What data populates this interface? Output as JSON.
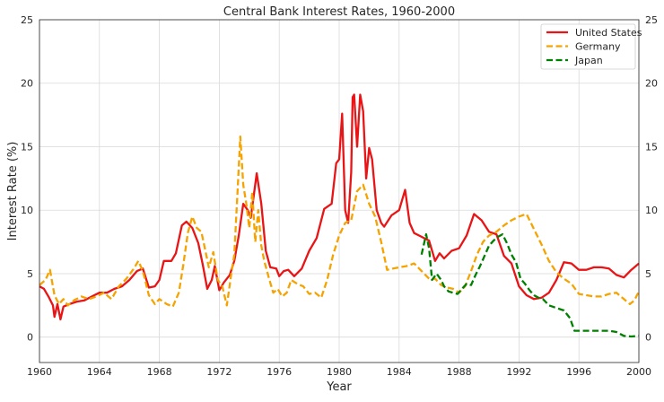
{
  "chart_data": {
    "type": "line",
    "title": "Central Bank Interest Rates, 1960-2000",
    "xlabel": "Year",
    "ylabel": "Interest Rate (%)",
    "xlim": [
      1960,
      2000
    ],
    "ylim": [
      -2,
      25
    ],
    "xticks": [
      1960,
      1964,
      1968,
      1972,
      1976,
      1980,
      1984,
      1988,
      1992,
      1996,
      2000
    ],
    "yticks": [
      0,
      5,
      10,
      15,
      20,
      25
    ],
    "grid": true,
    "legend_position": "top-right",
    "y_axis_mirrored_right": true,
    "series": [
      {
        "name": "United States",
        "color": "#e81416",
        "line_style": "solid",
        "points": [
          [
            1960.0,
            4.0
          ],
          [
            1960.3,
            3.8
          ],
          [
            1960.6,
            3.2
          ],
          [
            1960.9,
            2.5
          ],
          [
            1961.0,
            1.6
          ],
          [
            1961.2,
            2.6
          ],
          [
            1961.4,
            1.4
          ],
          [
            1961.6,
            2.4
          ],
          [
            1961.8,
            2.5
          ],
          [
            1962.0,
            2.6
          ],
          [
            1962.5,
            2.8
          ],
          [
            1963.0,
            2.9
          ],
          [
            1963.5,
            3.2
          ],
          [
            1964.0,
            3.5
          ],
          [
            1964.5,
            3.5
          ],
          [
            1965.0,
            3.8
          ],
          [
            1965.5,
            4.0
          ],
          [
            1966.0,
            4.5
          ],
          [
            1966.5,
            5.2
          ],
          [
            1966.9,
            5.4
          ],
          [
            1967.3,
            3.9
          ],
          [
            1967.7,
            4.0
          ],
          [
            1968.0,
            4.5
          ],
          [
            1968.3,
            6.0
          ],
          [
            1968.8,
            6.0
          ],
          [
            1969.1,
            6.6
          ],
          [
            1969.5,
            8.8
          ],
          [
            1969.8,
            9.1
          ],
          [
            1970.2,
            8.6
          ],
          [
            1970.6,
            7.4
          ],
          [
            1970.9,
            5.7
          ],
          [
            1971.2,
            3.8
          ],
          [
            1971.5,
            4.5
          ],
          [
            1971.7,
            5.6
          ],
          [
            1972.0,
            3.7
          ],
          [
            1972.3,
            4.3
          ],
          [
            1972.7,
            4.9
          ],
          [
            1973.0,
            6.0
          ],
          [
            1973.3,
            8.0
          ],
          [
            1973.6,
            10.5
          ],
          [
            1973.9,
            10.0
          ],
          [
            1974.1,
            9.4
          ],
          [
            1974.5,
            12.9
          ],
          [
            1974.8,
            10.5
          ],
          [
            1975.1,
            6.8
          ],
          [
            1975.4,
            5.5
          ],
          [
            1975.8,
            5.4
          ],
          [
            1976.0,
            4.8
          ],
          [
            1976.3,
            5.2
          ],
          [
            1976.6,
            5.3
          ],
          [
            1977.0,
            4.8
          ],
          [
            1977.5,
            5.4
          ],
          [
            1978.0,
            6.8
          ],
          [
            1978.5,
            7.8
          ],
          [
            1979.0,
            10.1
          ],
          [
            1979.5,
            10.5
          ],
          [
            1979.8,
            13.7
          ],
          [
            1980.0,
            14.0
          ],
          [
            1980.2,
            17.6
          ],
          [
            1980.4,
            10.0
          ],
          [
            1980.6,
            9.0
          ],
          [
            1980.8,
            13.0
          ],
          [
            1980.9,
            18.9
          ],
          [
            1981.0,
            19.1
          ],
          [
            1981.2,
            15.0
          ],
          [
            1981.4,
            19.1
          ],
          [
            1981.6,
            17.8
          ],
          [
            1981.8,
            12.5
          ],
          [
            1982.0,
            14.9
          ],
          [
            1982.2,
            14.0
          ],
          [
            1982.5,
            10.0
          ],
          [
            1982.8,
            9.0
          ],
          [
            1983.0,
            8.7
          ],
          [
            1983.5,
            9.6
          ],
          [
            1984.0,
            10.0
          ],
          [
            1984.4,
            11.6
          ],
          [
            1984.7,
            9.0
          ],
          [
            1985.0,
            8.2
          ],
          [
            1985.5,
            7.9
          ],
          [
            1986.0,
            7.6
          ],
          [
            1986.4,
            6.0
          ],
          [
            1986.7,
            6.6
          ],
          [
            1987.0,
            6.2
          ],
          [
            1987.5,
            6.8
          ],
          [
            1988.0,
            7.0
          ],
          [
            1988.5,
            8.0
          ],
          [
            1989.0,
            9.7
          ],
          [
            1989.5,
            9.2
          ],
          [
            1990.0,
            8.3
          ],
          [
            1990.5,
            8.1
          ],
          [
            1991.0,
            6.4
          ],
          [
            1991.5,
            5.8
          ],
          [
            1992.0,
            4.0
          ],
          [
            1992.5,
            3.3
          ],
          [
            1993.0,
            3.0
          ],
          [
            1993.5,
            3.1
          ],
          [
            1994.0,
            3.5
          ],
          [
            1994.5,
            4.5
          ],
          [
            1995.0,
            5.9
          ],
          [
            1995.5,
            5.8
          ],
          [
            1996.0,
            5.3
          ],
          [
            1996.5,
            5.3
          ],
          [
            1997.0,
            5.5
          ],
          [
            1997.5,
            5.5
          ],
          [
            1998.0,
            5.4
          ],
          [
            1998.5,
            4.9
          ],
          [
            1999.0,
            4.7
          ],
          [
            1999.5,
            5.3
          ],
          [
            2000.0,
            5.8
          ]
        ]
      },
      {
        "name": "Germany",
        "color": "#f5a300",
        "line_style": "dashed",
        "points": [
          [
            1960.0,
            4.1
          ],
          [
            1960.4,
            4.5
          ],
          [
            1960.7,
            5.3
          ],
          [
            1961.0,
            3.3
          ],
          [
            1961.3,
            2.6
          ],
          [
            1961.6,
            3.0
          ],
          [
            1961.9,
            2.5
          ],
          [
            1962.3,
            2.9
          ],
          [
            1962.8,
            3.2
          ],
          [
            1963.3,
            3.0
          ],
          [
            1963.8,
            3.2
          ],
          [
            1964.3,
            3.5
          ],
          [
            1964.8,
            3.0
          ],
          [
            1965.3,
            4.0
          ],
          [
            1965.8,
            4.6
          ],
          [
            1966.3,
            5.4
          ],
          [
            1966.6,
            6.0
          ],
          [
            1966.9,
            5.2
          ],
          [
            1967.3,
            3.3
          ],
          [
            1967.7,
            2.6
          ],
          [
            1968.0,
            3.0
          ],
          [
            1968.5,
            2.6
          ],
          [
            1968.9,
            2.4
          ],
          [
            1969.3,
            3.5
          ],
          [
            1969.6,
            5.7
          ],
          [
            1969.9,
            8.2
          ],
          [
            1970.2,
            9.5
          ],
          [
            1970.5,
            8.6
          ],
          [
            1970.8,
            8.3
          ],
          [
            1971.0,
            7.2
          ],
          [
            1971.3,
            5.5
          ],
          [
            1971.6,
            6.7
          ],
          [
            1971.9,
            4.5
          ],
          [
            1972.2,
            4.0
          ],
          [
            1972.5,
            2.5
          ],
          [
            1972.8,
            5.0
          ],
          [
            1973.0,
            6.5
          ],
          [
            1973.2,
            11.0
          ],
          [
            1973.4,
            15.8
          ],
          [
            1973.6,
            12.0
          ],
          [
            1973.8,
            10.5
          ],
          [
            1974.0,
            8.6
          ],
          [
            1974.2,
            11.4
          ],
          [
            1974.4,
            7.5
          ],
          [
            1974.6,
            10.0
          ],
          [
            1974.8,
            7.2
          ],
          [
            1975.0,
            6.0
          ],
          [
            1975.3,
            4.7
          ],
          [
            1975.6,
            3.5
          ],
          [
            1975.9,
            3.8
          ],
          [
            1976.2,
            3.2
          ],
          [
            1976.5,
            3.5
          ],
          [
            1976.8,
            4.5
          ],
          [
            1977.2,
            4.2
          ],
          [
            1977.6,
            4.0
          ],
          [
            1978.0,
            3.4
          ],
          [
            1978.4,
            3.5
          ],
          [
            1978.8,
            3.1
          ],
          [
            1979.2,
            4.5
          ],
          [
            1979.6,
            6.5
          ],
          [
            1980.0,
            8.0
          ],
          [
            1980.4,
            9.0
          ],
          [
            1980.8,
            9.2
          ],
          [
            1981.2,
            11.5
          ],
          [
            1981.6,
            12.0
          ],
          [
            1982.0,
            10.5
          ],
          [
            1982.4,
            9.5
          ],
          [
            1982.8,
            7.5
          ],
          [
            1983.2,
            5.3
          ],
          [
            1983.6,
            5.4
          ],
          [
            1984.0,
            5.5
          ],
          [
            1984.5,
            5.6
          ],
          [
            1985.0,
            5.8
          ],
          [
            1985.5,
            5.2
          ],
          [
            1986.0,
            4.6
          ],
          [
            1986.4,
            4.6
          ],
          [
            1986.8,
            4.1
          ],
          [
            1987.2,
            3.9
          ],
          [
            1987.6,
            3.8
          ],
          [
            1988.0,
            3.5
          ],
          [
            1988.4,
            4.0
          ],
          [
            1988.8,
            5.2
          ],
          [
            1989.2,
            6.5
          ],
          [
            1989.6,
            7.5
          ],
          [
            1990.0,
            8.0
          ],
          [
            1990.5,
            8.3
          ],
          [
            1991.0,
            8.8
          ],
          [
            1991.5,
            9.2
          ],
          [
            1992.0,
            9.5
          ],
          [
            1992.5,
            9.7
          ],
          [
            1993.0,
            8.5
          ],
          [
            1993.5,
            7.3
          ],
          [
            1994.0,
            6.0
          ],
          [
            1994.5,
            5.1
          ],
          [
            1995.0,
            4.6
          ],
          [
            1995.5,
            4.2
          ],
          [
            1996.0,
            3.4
          ],
          [
            1996.5,
            3.3
          ],
          [
            1997.0,
            3.2
          ],
          [
            1997.5,
            3.2
          ],
          [
            1998.0,
            3.4
          ],
          [
            1998.5,
            3.5
          ],
          [
            1999.0,
            3.0
          ],
          [
            1999.4,
            2.6
          ],
          [
            1999.7,
            2.9
          ],
          [
            2000.0,
            3.6
          ]
        ]
      },
      {
        "name": "Japan",
        "color": "#008000",
        "line_style": "dashed",
        "points": [
          [
            1985.5,
            6.5
          ],
          [
            1985.8,
            8.1
          ],
          [
            1986.0,
            7.0
          ],
          [
            1986.2,
            4.5
          ],
          [
            1986.5,
            5.0
          ],
          [
            1986.8,
            4.5
          ],
          [
            1987.0,
            4.0
          ],
          [
            1987.3,
            3.6
          ],
          [
            1987.6,
            3.5
          ],
          [
            1987.9,
            3.4
          ],
          [
            1988.2,
            3.8
          ],
          [
            1988.5,
            4.2
          ],
          [
            1988.8,
            4.1
          ],
          [
            1989.1,
            4.9
          ],
          [
            1989.4,
            5.6
          ],
          [
            1989.7,
            6.4
          ],
          [
            1990.0,
            7.2
          ],
          [
            1990.3,
            7.6
          ],
          [
            1990.6,
            7.9
          ],
          [
            1990.9,
            8.1
          ],
          [
            1991.2,
            7.4
          ],
          [
            1991.5,
            6.5
          ],
          [
            1991.8,
            5.9
          ],
          [
            1992.1,
            4.6
          ],
          [
            1992.4,
            4.2
          ],
          [
            1992.7,
            3.7
          ],
          [
            1993.0,
            3.3
          ],
          [
            1993.3,
            3.1
          ],
          [
            1993.6,
            3.0
          ],
          [
            1994.0,
            2.5
          ],
          [
            1994.5,
            2.3
          ],
          [
            1995.0,
            2.1
          ],
          [
            1995.4,
            1.5
          ],
          [
            1995.7,
            0.5
          ],
          [
            1996.0,
            0.5
          ],
          [
            1996.5,
            0.5
          ],
          [
            1997.0,
            0.5
          ],
          [
            1997.5,
            0.5
          ],
          [
            1998.0,
            0.5
          ],
          [
            1998.5,
            0.4
          ],
          [
            1999.0,
            0.1
          ],
          [
            1999.5,
            0.05
          ],
          [
            2000.0,
            0.1
          ]
        ]
      }
    ]
  }
}
